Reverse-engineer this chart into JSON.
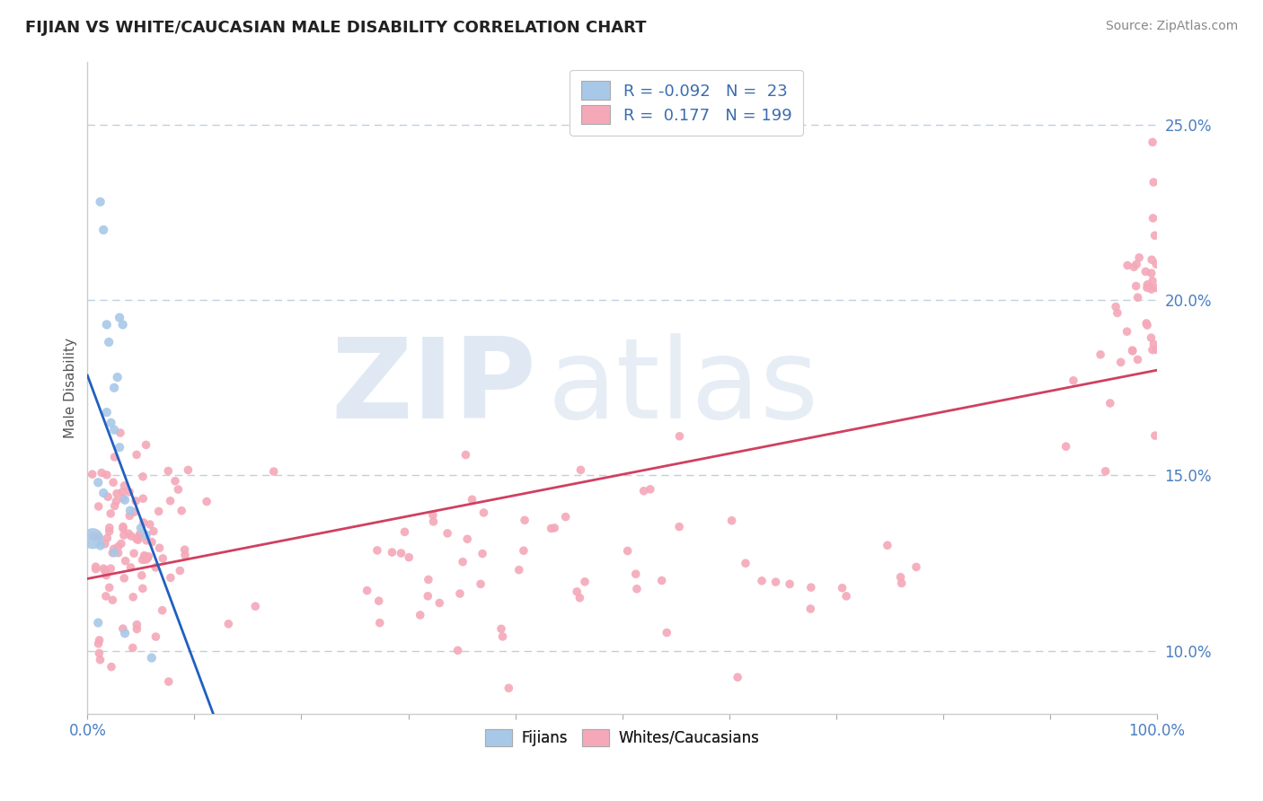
{
  "title": "FIJIAN VS WHITE/CAUCASIAN MALE DISABILITY CORRELATION CHART",
  "source_text": "Source: ZipAtlas.com",
  "ylabel": "Male Disability",
  "xlim": [
    0.0,
    1.0
  ],
  "ylim": [
    0.082,
    0.268
  ],
  "yticks": [
    0.1,
    0.15,
    0.2,
    0.25
  ],
  "ytick_labels": [
    "10.0%",
    "15.0%",
    "20.0%",
    "25.0%"
  ],
  "fijian_color": "#a8c8e8",
  "white_color": "#f4a8b8",
  "fijian_R": -0.092,
  "fijian_N": 23,
  "white_R": 0.177,
  "white_N": 199,
  "trend_fijian_solid_color": "#2060c0",
  "trend_fijian_dash_color": "#6090d0",
  "trend_white_color": "#d04060",
  "watermark_zip": "ZIP",
  "watermark_atlas": "atlas",
  "background_color": "#ffffff",
  "grid_color": "#c0d0e0",
  "legend_R1": "R = -0.092",
  "legend_N1": "N =  23",
  "legend_R2": "R =  0.177",
  "legend_N2": "N = 199"
}
